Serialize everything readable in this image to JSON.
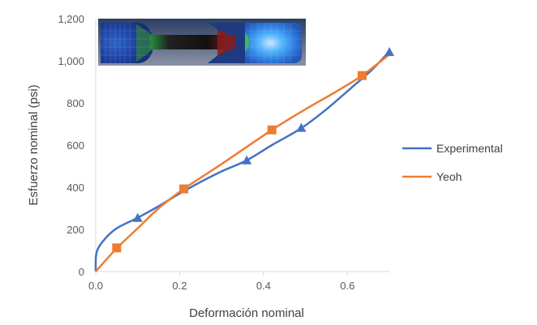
{
  "chart_data": {
    "type": "line",
    "xlabel": "Deformación nominal",
    "ylabel": "Esfuerzo nominal (psi)",
    "xlim": [
      0,
      0.7
    ],
    "ylim": [
      0,
      1200
    ],
    "x_ticks": [
      "0.0",
      "0.2",
      "0.4",
      "0.6"
    ],
    "x_tick_values": [
      0,
      0.2,
      0.4,
      0.6
    ],
    "y_ticks": [
      "0",
      "200",
      "400",
      "600",
      "800",
      "1,000",
      "1,200"
    ],
    "y_tick_values": [
      0,
      200,
      400,
      600,
      800,
      1000,
      1200
    ],
    "grid": false,
    "legend_position": "right",
    "inset": "tensile-specimen-simulation-image",
    "series": [
      {
        "name": "Experimental",
        "color": "#4472C4",
        "marker": "triangle",
        "curve": [
          [
            0,
            0
          ],
          [
            0.002,
            90
          ],
          [
            0.02,
            150
          ],
          [
            0.05,
            205
          ],
          [
            0.1,
            255
          ],
          [
            0.15,
            310
          ],
          [
            0.2,
            370
          ],
          [
            0.25,
            425
          ],
          [
            0.3,
            475
          ],
          [
            0.36,
            528
          ],
          [
            0.42,
            600
          ],
          [
            0.49,
            680
          ],
          [
            0.55,
            770
          ],
          [
            0.62,
            890
          ],
          [
            0.66,
            960
          ],
          [
            0.7,
            1045
          ]
        ],
        "markers": [
          [
            0.1,
            255
          ],
          [
            0.36,
            528
          ],
          [
            0.49,
            682
          ],
          [
            0.7,
            1042
          ]
        ]
      },
      {
        "name": "Yeoh",
        "color": "#ED7D31",
        "marker": "square",
        "curve": [
          [
            0,
            0
          ],
          [
            0.05,
            110
          ],
          [
            0.1,
            205
          ],
          [
            0.15,
            300
          ],
          [
            0.21,
            392
          ],
          [
            0.3,
            510
          ],
          [
            0.42,
            672
          ],
          [
            0.5,
            770
          ],
          [
            0.57,
            850
          ],
          [
            0.635,
            930
          ],
          [
            0.7,
            1030
          ]
        ],
        "markers": [
          [
            0.05,
            112
          ],
          [
            0.21,
            392
          ],
          [
            0.42,
            672
          ],
          [
            0.635,
            930
          ]
        ]
      }
    ]
  }
}
